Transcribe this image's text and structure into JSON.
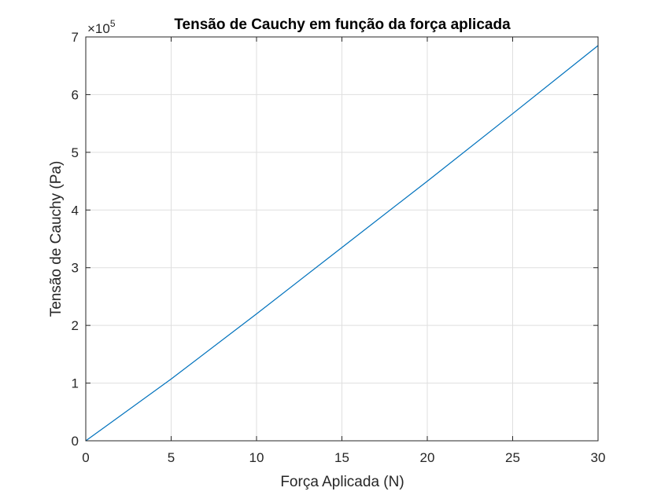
{
  "chart_data": {
    "type": "line",
    "title": "Tensão de Cauchy em função da força aplicada",
    "xlabel": "Força Aplicada (N)",
    "ylabel": "Tensão de Cauchy (Pa)",
    "xlim": [
      0,
      30
    ],
    "ylim": [
      0,
      7
    ],
    "y_multiplier": {
      "base": "×10",
      "exponent": "5"
    },
    "x_ticks": [
      0,
      5,
      10,
      15,
      20,
      25,
      30
    ],
    "y_ticks": [
      0,
      1,
      2,
      3,
      4,
      5,
      6,
      7
    ],
    "grid": true,
    "colors": {
      "line": "#0072BD",
      "grid": "#dfdfdf",
      "axis": "#262626"
    },
    "series": [
      {
        "x": [
          0,
          5,
          10,
          15,
          20,
          25,
          30
        ],
        "y": [
          0,
          1.07,
          2.2,
          3.35,
          4.5,
          5.67,
          6.85
        ]
      }
    ]
  }
}
